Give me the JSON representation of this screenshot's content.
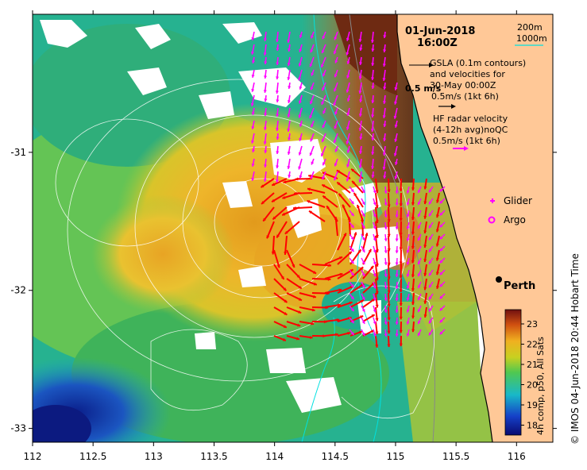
{
  "header": {
    "date": "01-Jun-2018",
    "time": "16:00Z"
  },
  "depth_legend": {
    "items": [
      {
        "label": "200m",
        "color": "#888888"
      },
      {
        "label": "1000m",
        "color": "#00e0e0"
      }
    ]
  },
  "gsla_legend": {
    "line1": "GSLA (0.1m contours)",
    "line2": "and velocities for",
    "line3": "30-May 00:00Z",
    "scale_label": "0.5m/s (1kt 6h)",
    "ref_label": "0.5 m/s"
  },
  "radar_legend": {
    "line1": "HF radar velocity",
    "line2": "(4-12h avg)noQC",
    "scale_label": "0.5m/s (1kt 6h)",
    "color": "#ff00ff"
  },
  "platforms": [
    {
      "label": "Glider",
      "color": "#ff00ff"
    },
    {
      "label": "Argo",
      "color": "#ff00ff"
    }
  ],
  "city": {
    "label": "Perth"
  },
  "colorbar": {
    "ticks": [
      "23",
      "22",
      "21",
      "20",
      "19",
      "18"
    ],
    "title": "4h comp, p50, All Sats"
  },
  "credit": "© IMOS 04-Jun-2018 20:44 Hobart Time",
  "axes": {
    "x_ticks": [
      "112",
      "112.5",
      "113",
      "113.5",
      "114",
      "114.5",
      "115",
      "115.5",
      "116"
    ],
    "y_ticks": [
      "-31",
      "-32",
      "-33"
    ],
    "xlim": [
      112,
      116.3
    ],
    "ylim": [
      -33.1,
      -30.0
    ]
  },
  "colors": {
    "land": "#ffc897",
    "radar_arrows": "#ff00ff",
    "altimetry_arrows": "#ff0000",
    "ssh_contours": "#ffffff"
  }
}
